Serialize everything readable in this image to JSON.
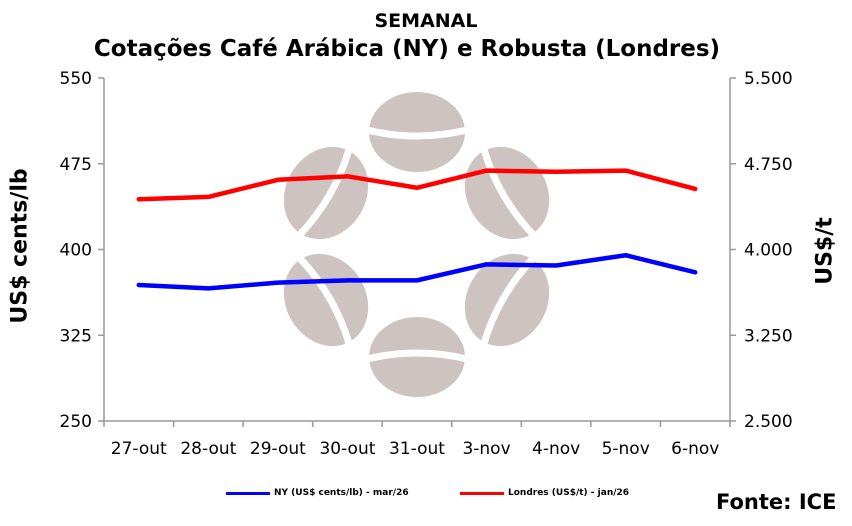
{
  "chart_data": {
    "type": "line",
    "title": "SEMANAL",
    "subtitle": "Cotações Café Arábica (NY) e Robusta (Londres)",
    "ylabel": "US$ cents/lb",
    "y2label": "US$/t",
    "categories": [
      "27-out",
      "28-out",
      "29-out",
      "30-out",
      "31-out",
      "3-nov",
      "4-nov",
      "5-nov",
      "6-nov"
    ],
    "ylim": [
      250,
      550
    ],
    "y2lim": [
      2500,
      5500
    ],
    "yticks": [
      "250",
      "325",
      "400",
      "475",
      "550"
    ],
    "y2ticks": [
      "2.500",
      "3.250",
      "4.000",
      "4.750",
      "5.500"
    ],
    "grid": false,
    "legend_position": "bottom",
    "series": [
      {
        "name": "NY (US$ cents/lb) - mar/26",
        "axis": "left",
        "color": "#0000ff",
        "values": [
          369,
          366,
          371,
          373,
          373,
          387,
          386,
          395,
          380
        ]
      },
      {
        "name": "Londres (US$/t) - jan/26",
        "axis": "right",
        "color": "#ff0000",
        "values": [
          4440,
          4460,
          4610,
          4640,
          4540,
          4690,
          4680,
          4690,
          4530
        ]
      }
    ]
  },
  "source": "Fonte: ICE"
}
